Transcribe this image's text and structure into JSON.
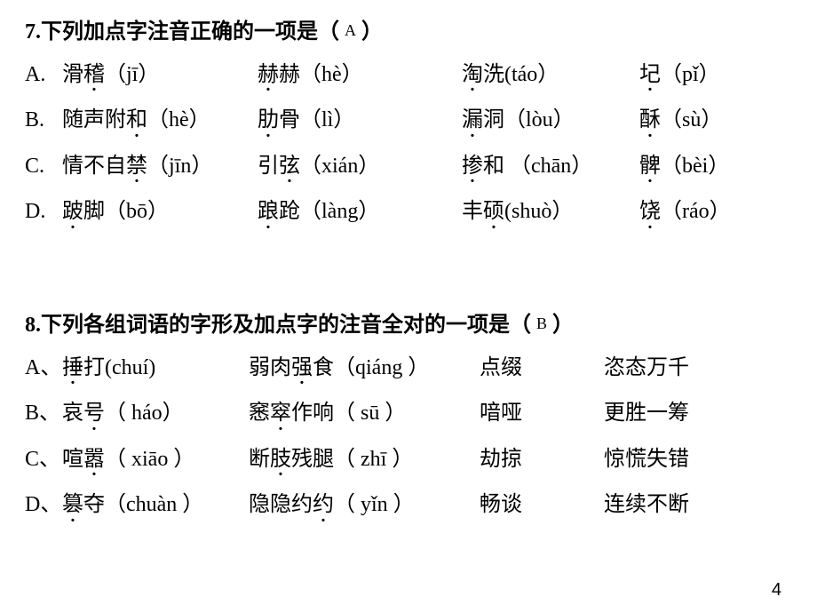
{
  "page_number": "4",
  "q7": {
    "header_pre": "7.下列加点字注音正确的一项是（",
    "answer": "A",
    "header_post": "）",
    "options": [
      {
        "label": "A.",
        "c1": "滑稽（jī）",
        "c2": "赫赫（hè）",
        "c3": "淘洗(táo）",
        "c4": "圮（pǐ）"
      },
      {
        "label": "B.",
        "c1": "随声附和（hè）",
        "c2": "肋骨（lì）",
        "c3": "漏洞（lòu）",
        "c4": "酥（sù）"
      },
      {
        "label": "C.",
        "c1": "情不自禁（jīn）",
        "c2": "引弦（xián）",
        "c3": "掺和 （chān）",
        "c4": "髀（bèi）"
      },
      {
        "label": "D.",
        "c1": "跛脚（bō）",
        "c2": "踉跄（làng）",
        "c3": "丰硕(shuò）",
        "c4": "饶（ráo）"
      }
    ]
  },
  "q8": {
    "header_pre": "8.下列各组词语的字形及加点字的注音全对的一项是（",
    "answer": "B",
    "header_post": "）",
    "options": [
      {
        "label": "A、",
        "c1": "捶打(chuí)",
        "c2": "弱肉强食（qiáng ）",
        "c3": "点缀",
        "c4": "恣态万千"
      },
      {
        "label": "B、",
        "c1": "哀号（ háo）",
        "c2": "窸窣作响（ sū ）",
        "c3": "喑哑",
        "c4": "更胜一筹"
      },
      {
        "label": "C、",
        "c1": "喧嚣（ xiāo ）",
        "c2": "断肢残腿（ zhī ）",
        "c3": "劫掠",
        "c4": "惊慌失错"
      },
      {
        "label": "D、",
        "c1": "篡夺（chuàn ）",
        "c2": "隐隐约约（ yǐn ）",
        "c3": "畅谈",
        "c4": "连续不断"
      }
    ]
  }
}
